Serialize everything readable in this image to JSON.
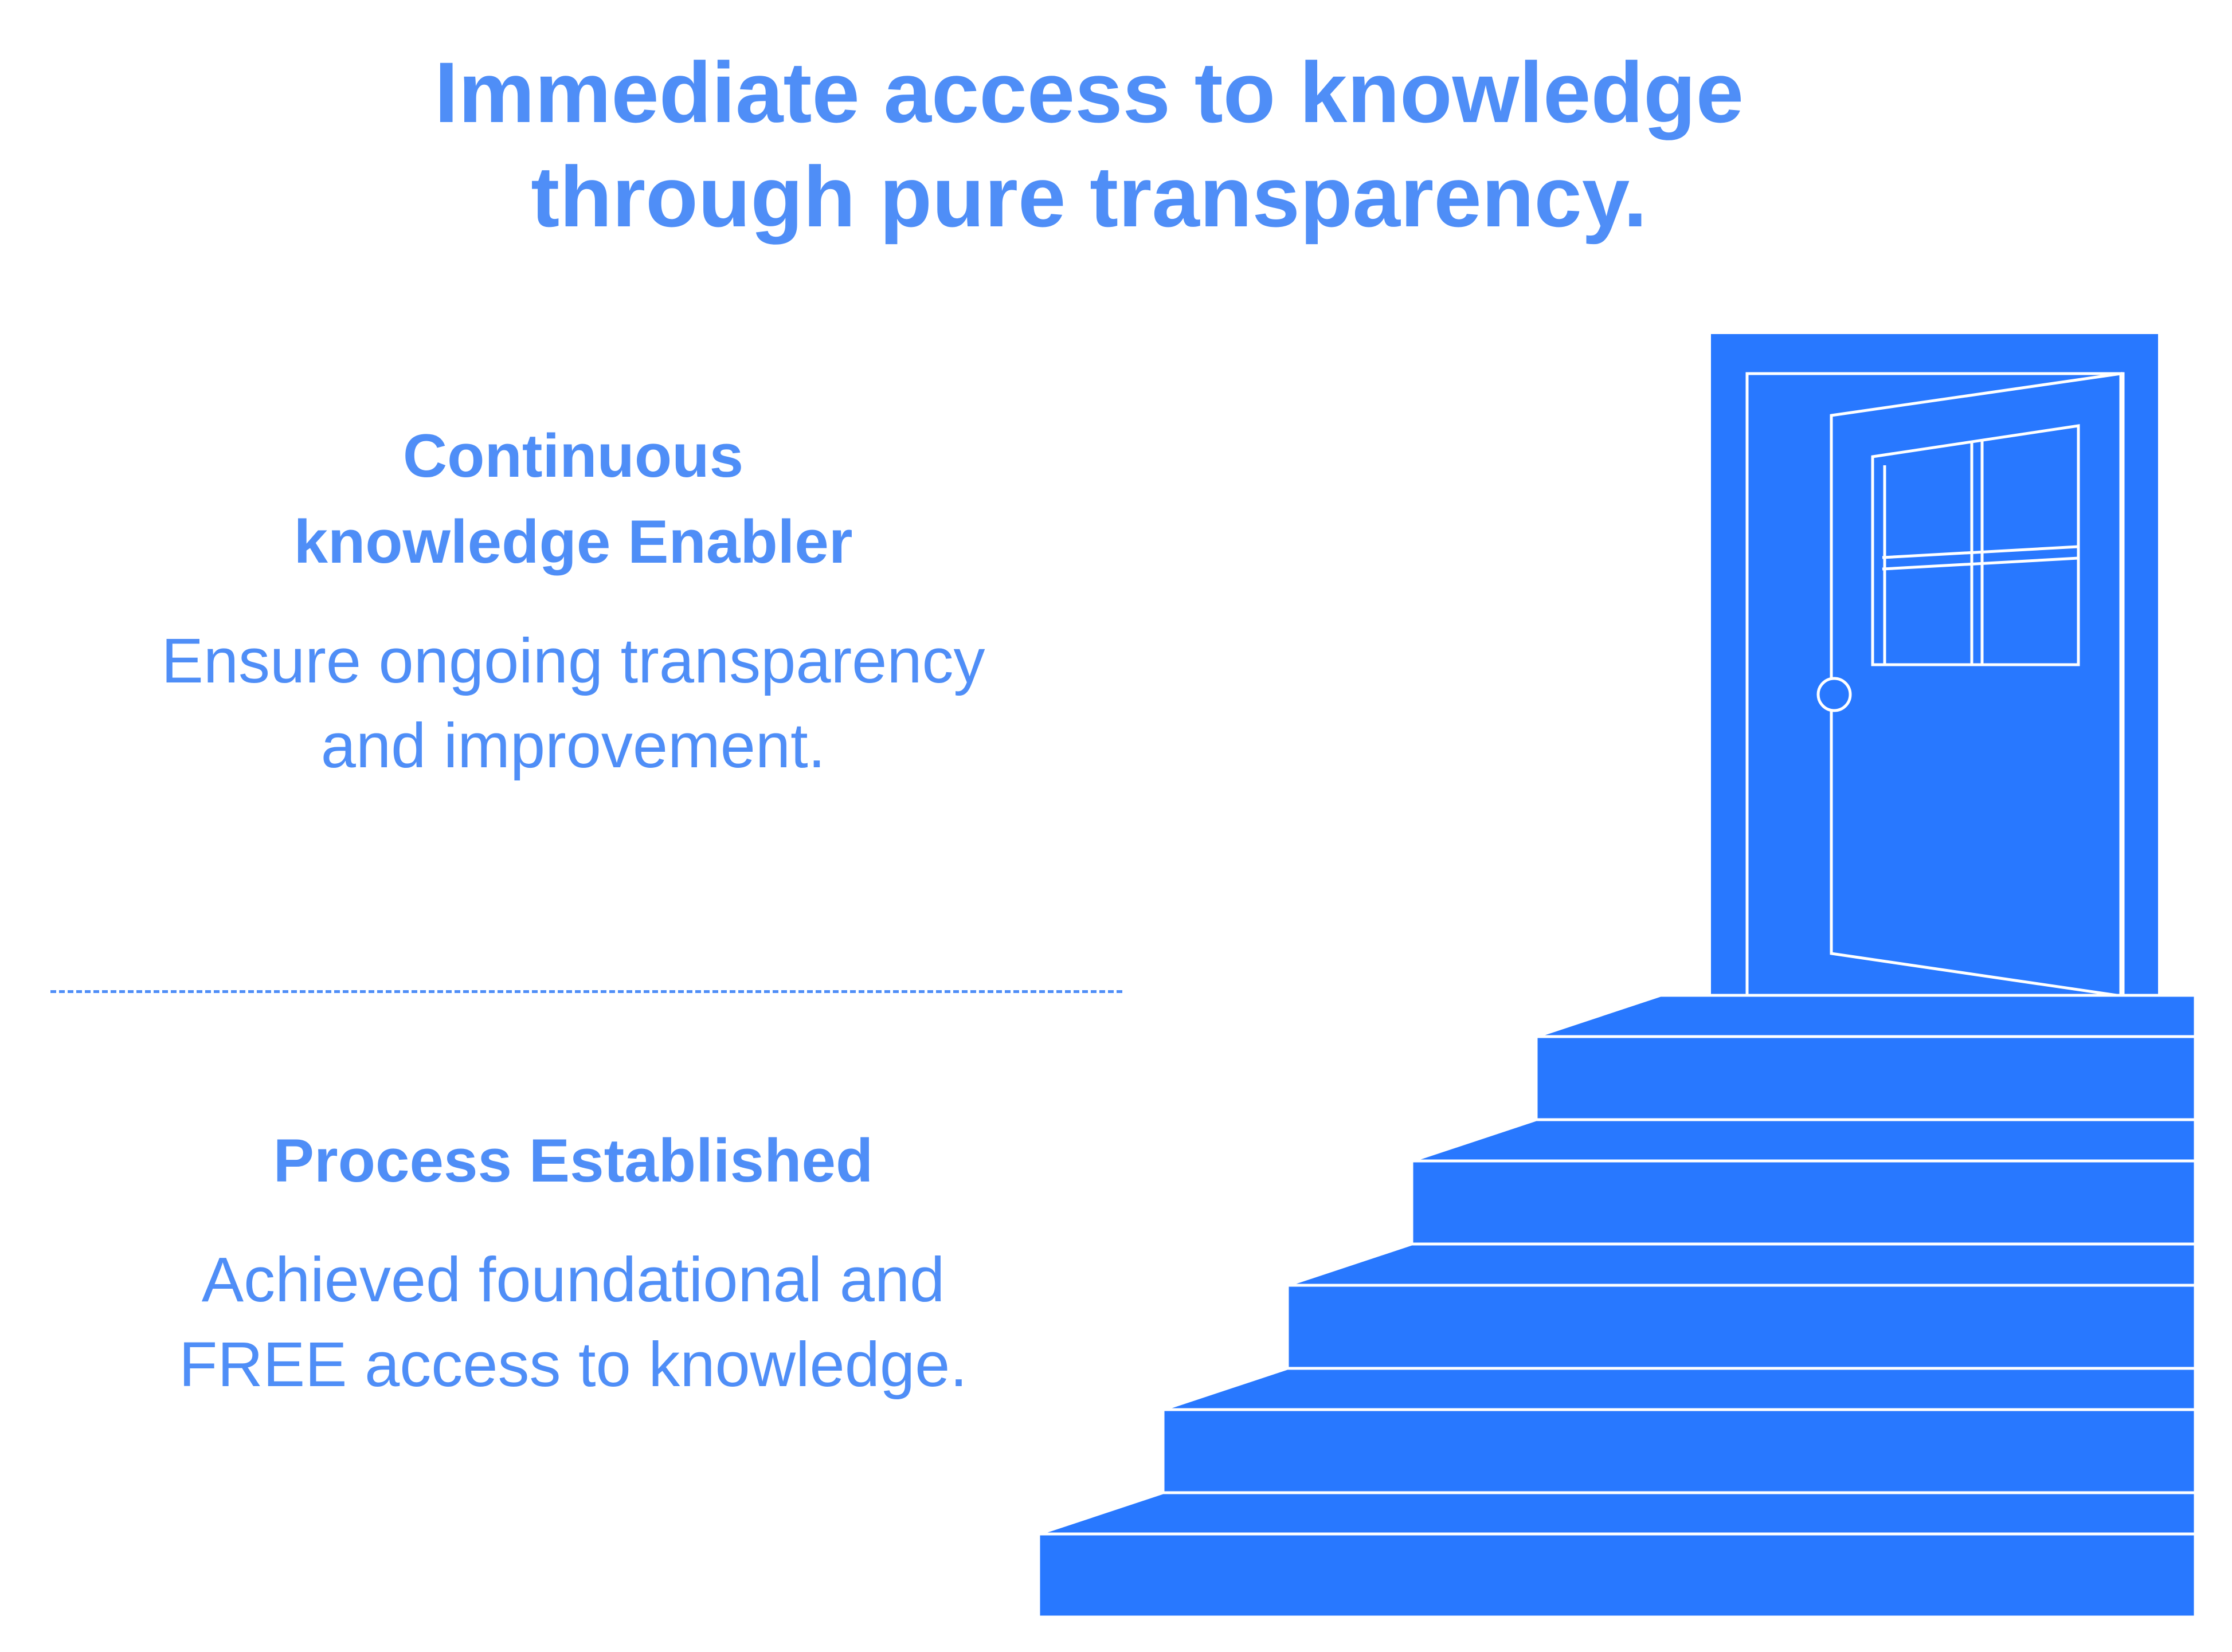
{
  "colors": {
    "text": "#4f8ef7",
    "fill": "#2878ff",
    "line": "#ffffff",
    "background": "#ffffff"
  },
  "title": {
    "line1": "Immediate access to knowledge",
    "line2": "through pure transparency."
  },
  "stages": [
    {
      "heading_lines": [
        "Continuous",
        "knowledge Enabler"
      ],
      "body_lines": [
        "Ensure ongoing transparency",
        "and improvement."
      ]
    },
    {
      "heading_lines": [
        "Process Established"
      ],
      "body_lines": [
        "Achieved foundational and",
        "FREE access to knowledge."
      ]
    }
  ],
  "illustration": {
    "door_icon": "open-door-icon",
    "stairs_icon": "staircase-icon",
    "step_count": 5
  }
}
